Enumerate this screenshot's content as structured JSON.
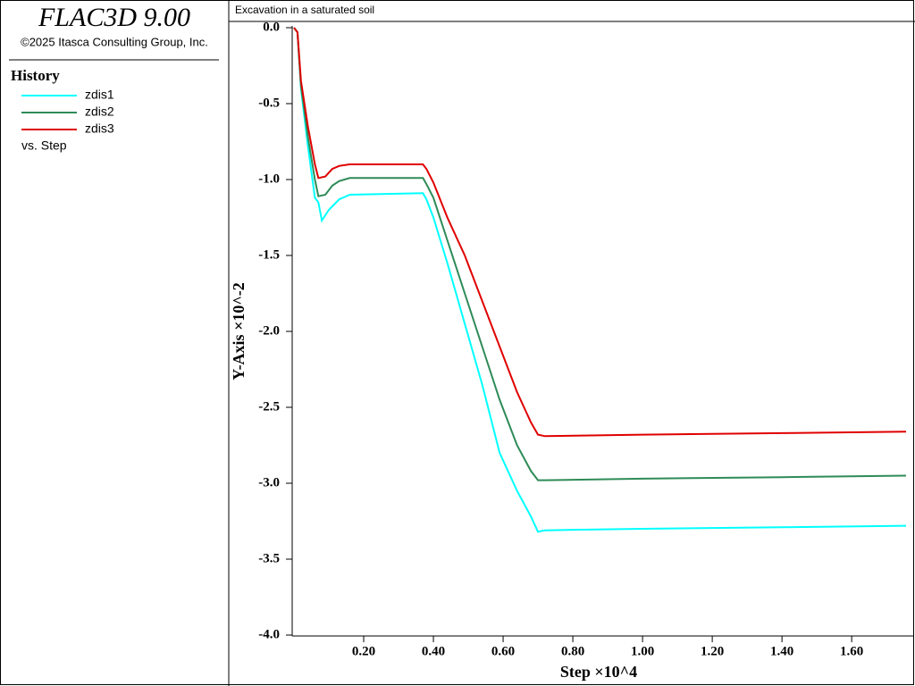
{
  "sidebar": {
    "app_title": "FLAC3D 9.00",
    "copyright": "©2025 Itasca Consulting Group, Inc.",
    "section": "History",
    "vs_label": "vs. Step"
  },
  "chart_data": {
    "type": "line",
    "title": "Excavation in a saturated soil",
    "x_label": "Step ×10^4",
    "y_label": "Y-Axis ×10^-2",
    "xlim": [
      0,
      1.756
    ],
    "ylim": [
      -4.0,
      0.0
    ],
    "xticks": [
      {
        "value": 0.2,
        "label": "0.20"
      },
      {
        "value": 0.4,
        "label": "0.40"
      },
      {
        "value": 0.6,
        "label": "0.60"
      },
      {
        "value": 0.8,
        "label": "0.80"
      },
      {
        "value": 1.0,
        "label": "1.00"
      },
      {
        "value": 1.2,
        "label": "1.20"
      },
      {
        "value": 1.4,
        "label": "1.40"
      },
      {
        "value": 1.6,
        "label": "1.60"
      }
    ],
    "yticks": [
      {
        "value": 0,
        "label": "0.0"
      },
      -0.5,
      {
        "value": -1,
        "label": "-1.0"
      },
      -1.5,
      {
        "value": -2,
        "label": "-2.0"
      },
      -2.5,
      {
        "value": -3,
        "label": "-3.0"
      },
      -3.5,
      {
        "value": -4,
        "label": "-4.0"
      }
    ],
    "series": [
      {
        "name": "zdis1",
        "color": "#00ffff",
        "x": [
          0,
          0.01,
          0.02,
          0.04,
          0.06,
          0.07,
          0.08,
          0.1,
          0.13,
          0.16,
          0.37,
          0.38,
          0.4,
          0.44,
          0.49,
          0.54,
          0.59,
          0.64,
          0.68,
          0.7,
          0.72,
          1.0,
          1.4,
          1.756
        ],
        "values": [
          0,
          -0.03,
          -0.4,
          -0.78,
          -1.12,
          -1.15,
          -1.27,
          -1.2,
          -1.13,
          -1.1,
          -1.09,
          -1.13,
          -1.25,
          -1.55,
          -1.95,
          -2.35,
          -2.8,
          -3.05,
          -3.22,
          -3.32,
          -3.31,
          -3.3,
          -3.29,
          -3.28
        ]
      },
      {
        "name": "zdis2",
        "color": "#2e8b57",
        "x": [
          0,
          0.01,
          0.02,
          0.04,
          0.06,
          0.07,
          0.09,
          0.11,
          0.13,
          0.16,
          0.37,
          0.38,
          0.4,
          0.44,
          0.49,
          0.54,
          0.59,
          0.64,
          0.68,
          0.7,
          0.72,
          1.0,
          1.4,
          1.756
        ],
        "values": [
          0,
          -0.03,
          -0.38,
          -0.72,
          -1.0,
          -1.11,
          -1.1,
          -1.04,
          -1.01,
          -0.99,
          -0.99,
          -1.03,
          -1.12,
          -1.4,
          -1.75,
          -2.1,
          -2.45,
          -2.75,
          -2.92,
          -2.98,
          -2.98,
          -2.97,
          -2.96,
          -2.95
        ]
      },
      {
        "name": "zdis3",
        "color": "#e00000",
        "x": [
          0,
          0.01,
          0.02,
          0.04,
          0.06,
          0.07,
          0.09,
          0.11,
          0.13,
          0.16,
          0.37,
          0.38,
          0.4,
          0.44,
          0.49,
          0.54,
          0.59,
          0.64,
          0.68,
          0.7,
          0.72,
          1.0,
          1.4,
          1.756
        ],
        "values": [
          0,
          -0.03,
          -0.35,
          -0.65,
          -0.9,
          -0.99,
          -0.98,
          -0.93,
          -0.91,
          -0.9,
          -0.9,
          -0.93,
          -1.02,
          -1.25,
          -1.5,
          -1.8,
          -2.1,
          -2.4,
          -2.6,
          -2.68,
          -2.69,
          -2.68,
          -2.67,
          -2.66
        ]
      }
    ]
  }
}
